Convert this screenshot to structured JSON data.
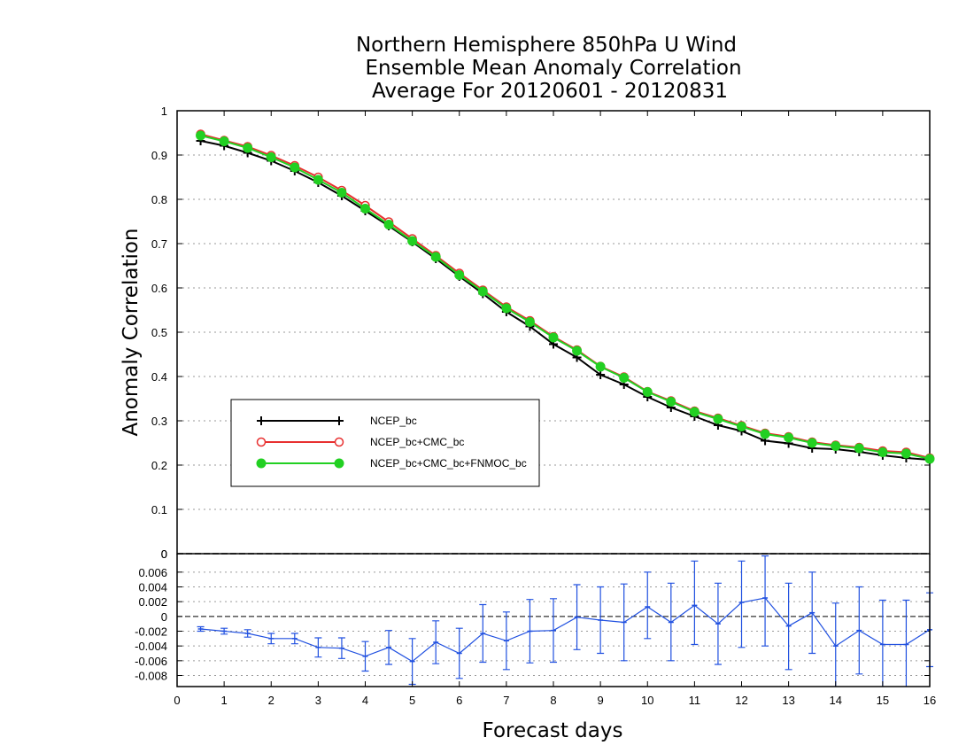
{
  "chart_data": [
    {
      "type": "line",
      "title": [
        "Northern Hemisphere 850hPa U Wind",
        "Ensemble Mean Anomaly Correlation",
        "Average For 20120601 - 20120831"
      ],
      "xlabel": "Forecast days",
      "ylabel": "Anomaly Correlation",
      "xlim": [
        0,
        16
      ],
      "ylim": [
        0,
        1
      ],
      "yticks": [
        "0",
        "0.1",
        "0.2",
        "0.3",
        "0.4",
        "0.5",
        "0.6",
        "0.7",
        "0.8",
        "0.9",
        "1"
      ],
      "xticks": [
        "0",
        "1",
        "2",
        "3",
        "4",
        "5",
        "6",
        "7",
        "8",
        "9",
        "10",
        "11",
        "12",
        "13",
        "14",
        "15",
        "16"
      ],
      "grid": true,
      "legend_position": "lower-left",
      "x": [
        0.5,
        1,
        1.5,
        2,
        2.5,
        3,
        3.5,
        4,
        4.5,
        5,
        5.5,
        6,
        6.5,
        7,
        7.5,
        8,
        8.5,
        9,
        9.5,
        10,
        10.5,
        11,
        11.5,
        12,
        12.5,
        13,
        13.5,
        14,
        14.5,
        15,
        15.5,
        16
      ],
      "series": [
        {
          "name": "NCEP_bc",
          "color": "#000000",
          "marker": "plus",
          "values": [
            0.932,
            0.921,
            0.905,
            0.887,
            0.864,
            0.838,
            0.808,
            0.774,
            0.74,
            0.704,
            0.666,
            0.626,
            0.587,
            0.546,
            0.513,
            0.473,
            0.443,
            0.404,
            0.382,
            0.354,
            0.33,
            0.31,
            0.29,
            0.277,
            0.255,
            0.249,
            0.238,
            0.236,
            0.23,
            0.222,
            0.216,
            0.212
          ]
        },
        {
          "name": "NCEP_bc+CMC_bc",
          "color": "#e83030",
          "marker": "open-circle",
          "values": [
            0.947,
            0.933,
            0.919,
            0.899,
            0.876,
            0.85,
            0.82,
            0.786,
            0.749,
            0.711,
            0.673,
            0.633,
            0.595,
            0.557,
            0.526,
            0.49,
            0.46,
            0.423,
            0.399,
            0.366,
            0.345,
            0.322,
            0.306,
            0.289,
            0.272,
            0.264,
            0.252,
            0.245,
            0.24,
            0.232,
            0.229,
            0.216
          ]
        },
        {
          "name": "NCEP_bc+CMC_bc+FNMOC_bc",
          "color": "#22d022",
          "marker": "filled-circle",
          "values": [
            0.944,
            0.931,
            0.916,
            0.895,
            0.872,
            0.844,
            0.815,
            0.779,
            0.743,
            0.706,
            0.67,
            0.629,
            0.592,
            0.554,
            0.523,
            0.488,
            0.458,
            0.422,
            0.397,
            0.365,
            0.343,
            0.32,
            0.304,
            0.287,
            0.27,
            0.262,
            0.25,
            0.243,
            0.238,
            0.229,
            0.226,
            0.214
          ]
        }
      ]
    },
    {
      "type": "line",
      "ylim": [
        -0.0095,
        0.0085
      ],
      "yticks": [
        "0.006",
        "0.004",
        "0.002",
        "0",
        "-0.002",
        "-0.004",
        "-0.006",
        "-0.008"
      ],
      "top_label": "0",
      "grid": true,
      "error_bars": true,
      "series": [
        {
          "color": "#2050e0",
          "x": [
            0.5,
            1,
            1.5,
            2,
            2.5,
            3,
            3.5,
            4,
            4.5,
            5,
            5.5,
            6,
            6.5,
            7,
            7.5,
            8,
            8.5,
            9,
            9.5,
            10,
            10.5,
            11,
            11.5,
            12,
            12.5,
            13,
            13.5,
            14,
            14.5,
            15,
            15.5,
            16
          ],
          "values": [
            -0.0017,
            -0.002,
            -0.0023,
            -0.003,
            -0.003,
            -0.0042,
            -0.0043,
            -0.0054,
            -0.0042,
            -0.0061,
            -0.0035,
            -0.005,
            -0.0023,
            -0.0033,
            -0.002,
            -0.0019,
            -0.0001,
            -0.0005,
            -0.0008,
            0.0013,
            -0.0008,
            0.0015,
            -0.001,
            0.0019,
            0.0025,
            -0.0013,
            0.0005,
            -0.004,
            -0.0019,
            -0.0038,
            -0.0038,
            -0.0018
          ],
          "err_low": [
            -0.002,
            -0.0024,
            -0.0028,
            -0.0037,
            -0.0037,
            -0.0055,
            -0.0057,
            -0.0074,
            -0.0065,
            -0.0092,
            -0.0064,
            -0.0084,
            -0.0062,
            -0.0072,
            -0.0063,
            -0.0062,
            -0.0045,
            -0.005,
            -0.006,
            -0.003,
            -0.006,
            -0.0038,
            -0.0065,
            -0.0042,
            -0.004,
            -0.0072,
            -0.005,
            -0.0098,
            -0.0078,
            -0.0098,
            -0.0098,
            -0.0068
          ],
          "err_high": [
            -0.0014,
            -0.0016,
            -0.0018,
            -0.0023,
            -0.0023,
            -0.0029,
            -0.0029,
            -0.0034,
            -0.0019,
            -0.003,
            -0.0006,
            -0.0016,
            0.0016,
            0.0006,
            0.0023,
            0.0024,
            0.0043,
            0.004,
            0.0044,
            0.006,
            0.0045,
            0.0075,
            0.0045,
            0.0075,
            0.0082,
            0.0045,
            0.006,
            0.0018,
            0.004,
            0.0022,
            0.0022,
            0.0032
          ]
        }
      ]
    }
  ]
}
